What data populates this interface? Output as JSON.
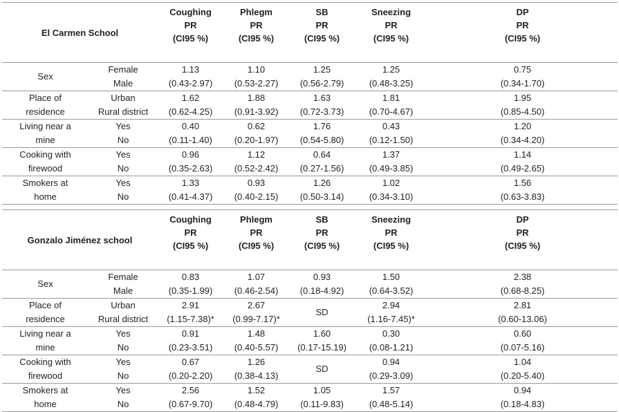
{
  "sections": [
    {
      "school": "El Carmen School",
      "columns": [
        {
          "name": "Coughing",
          "measure": "PR",
          "ci": "(CI95 %)"
        },
        {
          "name": "Phlegm",
          "measure": "PR",
          "ci": "(CI95 %)"
        },
        {
          "name": "SB",
          "measure": "PR",
          "ci": "(CI95 %)"
        },
        {
          "name": "Sneezing",
          "measure": "PR",
          "ci": "(CI95 %)"
        },
        {
          "name": "DP",
          "measure": "PR",
          "ci": "(CI95 %)"
        }
      ],
      "rows": [
        {
          "variable": "Sex",
          "levels": [
            "Female",
            "Male"
          ],
          "cells": [
            [
              "1.13",
              "(0.43-2.97)"
            ],
            [
              "1.10",
              "(0.53-2.27)"
            ],
            [
              "1.25",
              "(0.56-2.79)"
            ],
            [
              "1.25",
              "(0.48-3.25)"
            ],
            [
              "0.75",
              "(0.34-1.70)"
            ]
          ]
        },
        {
          "variable": "Place of residence",
          "levels": [
            "Urban",
            "Rural district"
          ],
          "cells": [
            [
              "1.62",
              "(0.62-4.25)"
            ],
            [
              "1.88",
              "(0.91-3.92)"
            ],
            [
              "1.63",
              "(0.72-3.73)"
            ],
            [
              "1.81",
              "(0.70-4.67)"
            ],
            [
              "1.95",
              "(0.85-4.50)"
            ]
          ]
        },
        {
          "variable": "Living near a mine",
          "levels": [
            "Yes",
            "No"
          ],
          "cells": [
            [
              "0.40",
              "(0.11-1.40)"
            ],
            [
              "0.62",
              "(0.20-1.97)"
            ],
            [
              "1.76",
              "(0.54-5.80)"
            ],
            [
              "0.43",
              "(0.12-1.50)"
            ],
            [
              "1.20",
              "(0.34-4.20)"
            ]
          ]
        },
        {
          "variable": "Cooking with firewood",
          "levels": [
            "Yes",
            "No"
          ],
          "cells": [
            [
              "0.96",
              "(0.35-2.63)"
            ],
            [
              "1.12",
              "(0.52-2.42)"
            ],
            [
              "0.64",
              "(0.27-1.56)"
            ],
            [
              "1.37",
              "(0.49-3.85)"
            ],
            [
              "1.14",
              "(0.49-2.65)"
            ]
          ]
        },
        {
          "variable": "Smokers at home",
          "levels": [
            "Yes",
            "No"
          ],
          "cells": [
            [
              "1.33",
              "(0.41-4.37)"
            ],
            [
              "0.93",
              "(0.40-2.15)"
            ],
            [
              "1.26",
              "(0.50-3.14)"
            ],
            [
              "1.02",
              "(0.34-3.10)"
            ],
            [
              "1.56",
              "(0.63-3.83)"
            ]
          ]
        }
      ]
    },
    {
      "school": "Gonzalo Jiménez school",
      "columns": [
        {
          "name": "Coughing",
          "measure": "PR",
          "ci": "(CI95 %)"
        },
        {
          "name": "Phlegm",
          "measure": "PR",
          "ci": "(CI95 %)"
        },
        {
          "name": "SB",
          "measure": "PR",
          "ci": "(CI95 %)"
        },
        {
          "name": "Sneezing",
          "measure": "PR",
          "ci": "(CI95 %)"
        },
        {
          "name": "DP",
          "measure": "PR",
          "ci": "(CI95 %)"
        }
      ],
      "rows": [
        {
          "variable": "Sex",
          "levels": [
            "Female",
            "Male"
          ],
          "cells": [
            [
              "0.83",
              "(0.35-1.99)"
            ],
            [
              "1.07",
              "(0.46-2.54)"
            ],
            [
              "0.93",
              "(0.18-4.92)"
            ],
            [
              "1.50",
              "(0.64-3.52)"
            ],
            [
              "2.38",
              "(0.68-8.25)"
            ]
          ]
        },
        {
          "variable": "Place of residence",
          "levels": [
            "Urban",
            "Rural district"
          ],
          "cells": [
            [
              "2.91",
              "(1.15-7.38)*"
            ],
            [
              "2.67",
              "(0.99-7.17)*"
            ],
            [
              "SD"
            ],
            [
              "2.94",
              "(1.16-7.45)*"
            ],
            [
              "2.81",
              "(0.60-13.06)"
            ]
          ]
        },
        {
          "variable": "Living near a mine",
          "levels": [
            "Yes",
            "No"
          ],
          "cells": [
            [
              "0.91",
              "(0.23-3.51)"
            ],
            [
              "1.48",
              "(0.40-5.57)"
            ],
            [
              "1.60",
              "(0.17-15.19)"
            ],
            [
              "0.30",
              "(0.08-1.21)"
            ],
            [
              "0.60",
              "(0.07-5.16)"
            ]
          ]
        },
        {
          "variable": "Cooking with firewood",
          "levels": [
            "Yes",
            "No"
          ],
          "cells": [
            [
              "0.67",
              "(0.20-2.20)"
            ],
            [
              "1.26",
              "(0.38-4.13)"
            ],
            [
              "SD"
            ],
            [
              "0.94",
              "(0.29-3.09)"
            ],
            [
              "1.04",
              "(0.20-5.40)"
            ]
          ]
        },
        {
          "variable": "Smokers at home",
          "levels": [
            "Yes",
            "No"
          ],
          "cells": [
            [
              "2.56",
              "(0.67-9.70)"
            ],
            [
              "1.52",
              "(0.48-4.79)"
            ],
            [
              "1.05",
              "(0.11-9.83)"
            ],
            [
              "1.57",
              "(0.48-5.14)"
            ],
            [
              "0.94",
              "(0.18-4.83)"
            ]
          ]
        }
      ]
    }
  ]
}
